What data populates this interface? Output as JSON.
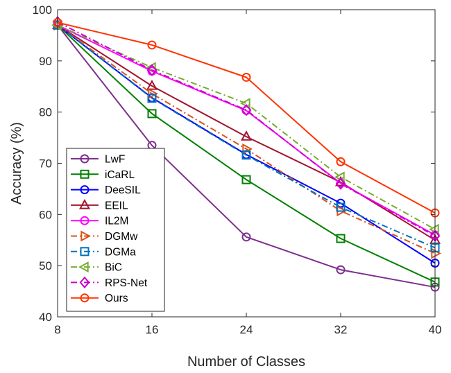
{
  "chart_data": {
    "type": "line",
    "xlabel": "Number of Classes",
    "ylabel": "Accuracy (%)",
    "x": [
      8,
      16,
      24,
      32,
      40
    ],
    "xlim": [
      8,
      40
    ],
    "ylim": [
      40,
      100
    ],
    "x_ticks": [
      "8",
      "16",
      "24",
      "32",
      "40"
    ],
    "y_ticks": [
      "40",
      "50",
      "60",
      "70",
      "80",
      "90",
      "100"
    ],
    "grid": false,
    "legend_position": "bottom-left",
    "series": [
      {
        "name": "LwF",
        "color": "#7E2F8E",
        "marker": "circle",
        "dash": "solid",
        "values": [
          97.0,
          73.5,
          55.6,
          49.2,
          45.8
        ]
      },
      {
        "name": "iCaRL",
        "color": "#008000",
        "marker": "square",
        "dash": "solid",
        "values": [
          97.0,
          79.7,
          66.8,
          55.3,
          46.8
        ]
      },
      {
        "name": "DeeSIL",
        "color": "#0000FF",
        "marker": "circle",
        "dash": "solid",
        "values": [
          97.0,
          82.8,
          71.7,
          62.2,
          50.5
        ]
      },
      {
        "name": "EEIL",
        "color": "#A2142F",
        "marker": "triangle-up",
        "dash": "solid",
        "values": [
          97.0,
          85.1,
          75.2,
          66.3,
          55.0
        ]
      },
      {
        "name": "IL2M",
        "color": "#FF00FF",
        "marker": "circle",
        "dash": "solid",
        "values": [
          97.0,
          88.0,
          80.3,
          66.1,
          56.0
        ]
      },
      {
        "name": "DGMw",
        "color": "#D95319",
        "marker": "triangle-right",
        "dash": "dashdot",
        "values": [
          97.0,
          83.6,
          72.8,
          60.7,
          52.4
        ]
      },
      {
        "name": "DGMa",
        "color": "#0072BD",
        "marker": "square",
        "dash": "dashdot",
        "values": [
          97.0,
          82.7,
          71.6,
          61.4,
          53.5
        ]
      },
      {
        "name": "BiC",
        "color": "#77AC30",
        "marker": "triangle-left",
        "dash": "dashdot",
        "values": [
          97.0,
          88.7,
          81.7,
          67.3,
          57.1
        ]
      },
      {
        "name": "RPS-Net",
        "color": "#CC00CC",
        "marker": "diamond",
        "dash": "dashdot",
        "values": [
          97.6,
          88.2,
          80.4,
          66.0,
          55.8
        ]
      },
      {
        "name": "Ours",
        "color": "#FF3300",
        "marker": "circle",
        "dash": "solid",
        "values": [
          97.5,
          93.1,
          86.8,
          70.3,
          60.3
        ]
      }
    ]
  }
}
